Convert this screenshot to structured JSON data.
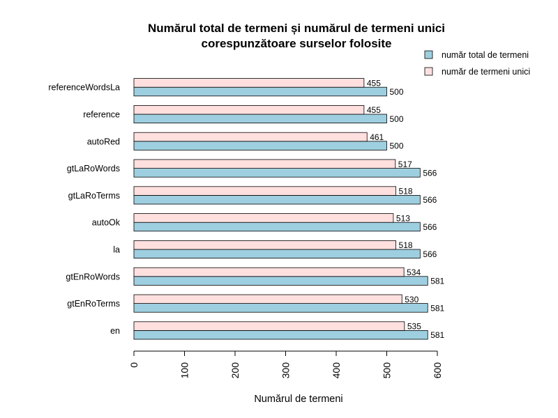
{
  "chart_data": {
    "type": "bar",
    "orientation": "horizontal",
    "title_line1": "Numărul total de termeni și numărul de termeni unici",
    "title_line2": "corespunzătoare surselor folosite",
    "xlabel": "Numărul de termeni",
    "ylabel": "",
    "xlim": [
      0,
      600
    ],
    "ticks": [
      "0",
      "100",
      "200",
      "300",
      "400",
      "500",
      "600"
    ],
    "categories": [
      "en",
      "gtEnRoTerms",
      "gtEnRoWords",
      "la",
      "autoOk",
      "gtLaRoTerms",
      "gtLaRoWords",
      "autoRed",
      "reference",
      "referenceWordsLa"
    ],
    "series": [
      {
        "name": "număr total de termeni",
        "color": "#9ECFE0",
        "values": [
          581,
          581,
          581,
          566,
          566,
          566,
          566,
          500,
          500,
          500
        ]
      },
      {
        "name": "număr de termeni unici",
        "color": "#FFE0DF",
        "values": [
          535,
          530,
          534,
          518,
          513,
          518,
          517,
          461,
          455,
          455
        ]
      }
    ],
    "legend_position": "top-right",
    "grid": false
  }
}
